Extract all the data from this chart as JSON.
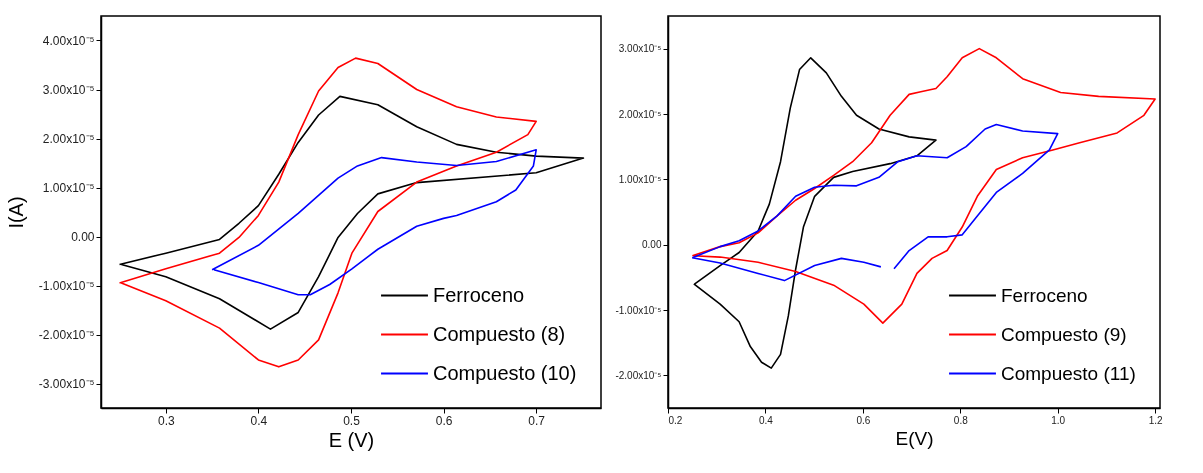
{
  "chart_data": [
    {
      "type": "line",
      "xlabel": "E (V)",
      "ylabel": "I(A)",
      "legend": "bottom right",
      "grid": false,
      "line_style": "solid",
      "marker": "none",
      "xlim": [
        0.23,
        0.77
      ],
      "xticks": [
        0.3,
        0.4,
        0.5,
        0.6,
        0.7
      ],
      "ylim": [
        -3.5e-05,
        4.5e-05
      ],
      "yticks": [
        {
          "value": 4e-05,
          "label": "4.00x10⁻⁵"
        },
        {
          "value": 3e-05,
          "label": "3.00x10⁻⁵"
        },
        {
          "value": 2e-05,
          "label": "2.00x10⁻⁵"
        },
        {
          "value": 1e-05,
          "label": "1.00x10⁻⁵"
        },
        {
          "value": 0,
          "label": "0.00"
        },
        {
          "value": -1e-05,
          "label": "-1.00x10⁻⁵"
        },
        {
          "value": -2e-05,
          "label": "-2.00x10⁻⁵"
        },
        {
          "value": -3e-05,
          "label": "-3.00x10⁻⁵"
        }
      ],
      "series": [
        {
          "name": "Ferroceno",
          "color": "#000000",
          "x": [
            0.25,
            0.3,
            0.358,
            0.379,
            0.4,
            0.422,
            0.443,
            0.465,
            0.488,
            0.529,
            0.571,
            0.614,
            0.657,
            0.7,
            0.751,
            0.7,
            0.571,
            0.529,
            0.507,
            0.486,
            0.465,
            0.443,
            0.413,
            0.358,
            0.3,
            0.252
          ],
          "values": [
            -5.7e-06,
            -3.4e-06,
            -6e-07,
            2.7e-06,
            6.3e-06,
            1.27e-05,
            1.92e-05,
            2.48e-05,
            2.86e-05,
            2.69e-05,
            2.24e-05,
            1.88e-05,
            1.72e-05,
            1.64e-05,
            1.6e-05,
            1.3e-05,
            1.1e-05,
            8.7e-06,
            4.7e-06,
            -2e-07,
            -8.2e-06,
            -1.55e-05,
            -1.89e-05,
            -1.27e-05,
            -8.2e-06,
            -5.7e-06
          ]
        },
        {
          "name": "Compuesto (8)",
          "color": "#ff0000",
          "x": [
            0.25,
            0.3,
            0.358,
            0.379,
            0.4,
            0.422,
            0.443,
            0.465,
            0.486,
            0.505,
            0.529,
            0.571,
            0.614,
            0.657,
            0.7,
            0.691,
            0.657,
            0.614,
            0.571,
            0.529,
            0.501,
            0.486,
            0.465,
            0.443,
            0.422,
            0.4,
            0.358,
            0.3,
            0.252
          ],
          "values": [
            -9.5e-06,
            -6.6e-06,
            -3.4e-06,
            -2e-07,
            4.3e-06,
            1.11e-05,
            2.08e-05,
            2.97e-05,
            3.45e-05,
            3.64e-05,
            3.53e-05,
            3e-05,
            2.65e-05,
            2.44e-05,
            2.35e-05,
            2.08e-05,
            1.72e-05,
            1.44e-05,
            1.11e-05,
            5.1e-06,
            -3.4e-06,
            -1.15e-05,
            -2.11e-05,
            -2.52e-05,
            -2.66e-05,
            -2.52e-05,
            -1.87e-05,
            -1.31e-05,
            -9.5e-06
          ]
        },
        {
          "name": "Compuesto (10)",
          "color": "#0000ff",
          "x": [
            0.35,
            0.4,
            0.443,
            0.486,
            0.507,
            0.533,
            0.571,
            0.614,
            0.657,
            0.7,
            0.697,
            0.678,
            0.657,
            0.614,
            0.6,
            0.571,
            0.529,
            0.501,
            0.477,
            0.456,
            0.443,
            0.4,
            0.352
          ],
          "values": [
            -6.8e-06,
            -1.8e-06,
            4.7e-06,
            1.19e-05,
            1.44e-05,
            1.61e-05,
            1.52e-05,
            1.45e-05,
            1.53e-05,
            1.77e-05,
            1.44e-05,
            9.5e-06,
            7.1e-06,
            4.3e-06,
            3.7e-06,
            2.1e-06,
            -2.6e-06,
            -6.6e-06,
            -9.8e-06,
            -1.19e-05,
            -1.19e-05,
            -9.4e-06,
            -6.8e-06
          ]
        }
      ]
    },
    {
      "type": "line",
      "xlabel": "E(V)",
      "legend": "bottom right",
      "grid": false,
      "line_style": "solid",
      "marker": "none",
      "xlim": [
        0.2,
        1.21
      ],
      "xticks": [
        {
          "value": 0.2,
          "label": "0.2"
        },
        {
          "value": 0.4,
          "label": "0.4"
        },
        {
          "value": 0.6,
          "label": "0.6"
        },
        {
          "value": 0.8,
          "label": "0.8"
        },
        {
          "value": 1.0,
          "label": "1.0"
        },
        {
          "value": 1.2,
          "label": "1.2"
        }
      ],
      "ylim": [
        -2.5e-05,
        3.5e-05
      ],
      "yticks": [
        {
          "value": 3e-05,
          "label": "3.00x10⁻⁵"
        },
        {
          "value": 2e-05,
          "label": "2.00x10⁻⁵"
        },
        {
          "value": 1e-05,
          "label": "1.00x10⁻⁵"
        },
        {
          "value": 0,
          "label": "0.00"
        },
        {
          "value": -1e-05,
          "label": "-1.00x10⁻⁵"
        },
        {
          "value": -2e-05,
          "label": "-2.00x10⁻⁵"
        }
      ],
      "series": [
        {
          "name": "Ferroceno",
          "color": "#000000",
          "x": [
            0.253,
            0.307,
            0.346,
            0.369,
            0.392,
            0.412,
            0.431,
            0.447,
            0.462,
            0.478,
            0.501,
            0.54,
            0.579,
            0.656,
            0.711,
            0.75,
            0.695,
            0.633,
            0.587,
            0.556,
            0.525,
            0.493,
            0.47,
            0.451,
            0.431,
            0.408,
            0.385,
            0.346,
            0.307,
            0.255
          ],
          "values": [
            -6e-06,
            -9.1e-06,
            -1.18e-05,
            -1.56e-05,
            -1.8e-05,
            -1.89e-05,
            -1.68e-05,
            -1.09e-05,
            -3.8e-06,
            2.7e-06,
            7.4e-06,
            1.03e-05,
            1.12e-05,
            1.24e-05,
            1.36e-05,
            1.6e-05,
            1.65e-05,
            1.77e-05,
            1.98e-05,
            2.27e-05,
            2.63e-05,
            2.86e-05,
            2.68e-05,
            2.09e-05,
            1.27e-05,
            6.2e-06,
            2.1e-06,
            -1.2e-06,
            -3.2e-06,
            -6e-06
          ]
        },
        {
          "name": "Compuesto (9)",
          "color": "#ff0000",
          "x": [
            0.25,
            0.307,
            0.346,
            0.385,
            0.424,
            0.462,
            0.501,
            0.54,
            0.579,
            0.618,
            0.656,
            0.695,
            0.719,
            0.75,
            0.773,
            0.804,
            0.839,
            0.874,
            0.928,
            1.006,
            1.084,
            1.2,
            1.177,
            1.122,
            1.045,
            0.99,
            0.928,
            0.874,
            0.835,
            0.804,
            0.773,
            0.742,
            0.711,
            0.68,
            0.641,
            0.602,
            0.54,
            0.462,
            0.385,
            0.307,
            0.252
          ],
          "values": [
            -1.7e-06,
            -3e-07,
            3e-07,
            1.8e-06,
            4.4e-06,
            6.8e-06,
            8.6e-06,
            1.06e-05,
            1.27e-05,
            1.56e-05,
            1.98e-05,
            2.3e-05,
            2.34e-05,
            2.39e-05,
            2.57e-05,
            2.86e-05,
            3e-05,
            2.86e-05,
            2.54e-05,
            2.33e-05,
            2.27e-05,
            2.23e-05,
            1.98e-05,
            1.71e-05,
            1.56e-05,
            1.45e-05,
            1.33e-05,
            1.15e-05,
            7.4e-06,
            2.7e-06,
            -9e-07,
            -2.1e-06,
            -4.4e-06,
            -9.1e-06,
            -1.2e-05,
            -9.1e-06,
            -6.2e-06,
            -4.1e-06,
            -2.7e-06,
            -1.9e-06,
            -1.7e-06
          ]
        },
        {
          "name": "Compuesto (11)",
          "color": "#0000ff",
          "x": [
            0.25,
            0.307,
            0.346,
            0.385,
            0.424,
            0.462,
            0.501,
            0.54,
            0.587,
            0.633,
            0.672,
            0.711,
            0.773,
            0.812,
            0.851,
            0.874,
            0.928,
            1.0,
            0.983,
            0.928,
            0.874,
            0.835,
            0.804,
            0.773,
            0.734,
            0.695,
            0.664,
            null,
            0.637,
            0.602,
            0.556,
            0.501,
            0.439,
            0.385,
            0.307,
            0.25
          ],
          "values": [
            -2e-06,
            -3e-07,
            6e-07,
            2.1e-06,
            4.4e-06,
            7.4e-06,
            8.8e-06,
            9.1e-06,
            9e-06,
            1.03e-05,
            1.27e-05,
            1.36e-05,
            1.33e-05,
            1.5e-05,
            1.77e-05,
            1.84e-05,
            1.74e-05,
            1.7e-05,
            1.45e-05,
            1.09e-05,
            8e-06,
            4.4e-06,
            1.5e-06,
            1.2e-06,
            1.2e-06,
            -9e-07,
            -3.7e-06,
            null,
            -3.4e-06,
            -2.7e-06,
            -2.1e-06,
            -3.2e-06,
            -5.5e-06,
            -4.4e-06,
            -2.8e-06,
            -2e-06
          ]
        }
      ]
    }
  ]
}
